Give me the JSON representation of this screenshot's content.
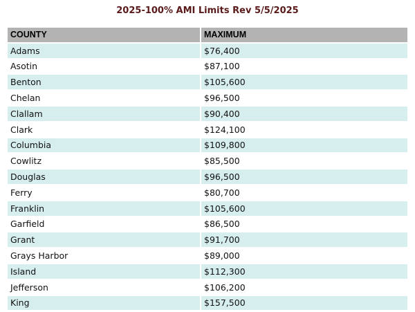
{
  "title": "2025-100% AMI Limits Rev 5/5/2025",
  "table": {
    "headers": [
      "COUNTY",
      "MAXIMUM"
    ],
    "rows": [
      [
        "Adams",
        "$76,400"
      ],
      [
        "Asotin",
        "$87,100"
      ],
      [
        "Benton",
        "$105,600"
      ],
      [
        "Chelan",
        "$96,500"
      ],
      [
        "Clallam",
        "$90,400"
      ],
      [
        "Clark",
        "$124,100"
      ],
      [
        "Columbia",
        "$109,800"
      ],
      [
        "Cowlitz",
        "$85,500"
      ],
      [
        "Douglas",
        "$96,500"
      ],
      [
        "Ferry",
        "$80,700"
      ],
      [
        "Franklin",
        "$105,600"
      ],
      [
        "Garfield",
        "$86,500"
      ],
      [
        "Grant",
        "$91,700"
      ],
      [
        "Grays Harbor",
        "$89,000"
      ],
      [
        "Island",
        "$112,300"
      ],
      [
        "Jefferson",
        "$106,200"
      ],
      [
        "King",
        "$157,500"
      ]
    ]
  },
  "colors": {
    "header_bg": "#b3b3b3",
    "stripe_bg": "#d6eeee",
    "title_color": "#5a1a1a"
  }
}
